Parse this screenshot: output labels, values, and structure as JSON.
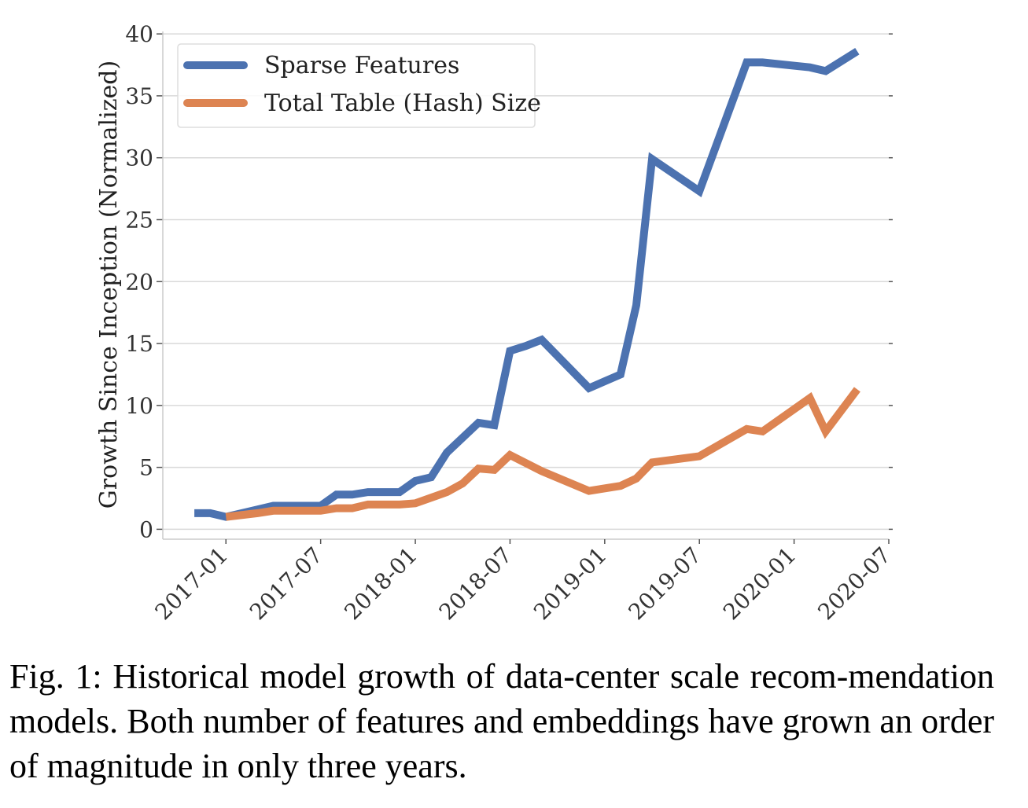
{
  "colors": {
    "sparse": "#4c72b0",
    "table": "#dd8452",
    "grid": "#d9d9d9",
    "axis": "#cccccc",
    "text": "#333333"
  },
  "chart_data": {
    "type": "line",
    "title": "",
    "xlabel": "",
    "ylabel": "Growth Since Inception (Normalized)",
    "x_ticks": [
      "2017-01",
      "2017-07",
      "2018-01",
      "2018-07",
      "2019-01",
      "2019-07",
      "2020-01",
      "2020-07"
    ],
    "y_ticks": [
      0,
      5,
      10,
      15,
      20,
      25,
      30,
      35,
      40
    ],
    "ylim": [
      -0.8,
      40.2
    ],
    "xlim": [
      "2016-09",
      "2020-07"
    ],
    "grid": true,
    "legend_position": "top-left",
    "series": [
      {
        "name": "Sparse Features",
        "color": "#4c72b0",
        "points": [
          [
            "2016-11",
            1.3
          ],
          [
            "2016-12",
            1.3
          ],
          [
            "2017-01",
            1.0
          ],
          [
            "2017-03",
            1.6
          ],
          [
            "2017-04",
            1.9
          ],
          [
            "2017-06",
            1.9
          ],
          [
            "2017-07",
            1.9
          ],
          [
            "2017-08",
            2.8
          ],
          [
            "2017-09",
            2.8
          ],
          [
            "2017-10",
            3.0
          ],
          [
            "2017-12",
            3.0
          ],
          [
            "2018-01",
            3.9
          ],
          [
            "2018-02",
            4.2
          ],
          [
            "2018-03",
            6.2
          ],
          [
            "2018-05",
            8.6
          ],
          [
            "2018-06",
            8.4
          ],
          [
            "2018-07",
            14.4
          ],
          [
            "2018-08",
            14.8
          ],
          [
            "2018-09",
            15.3
          ],
          [
            "2018-12",
            11.4
          ],
          [
            "2019-02",
            12.5
          ],
          [
            "2019-03",
            18.1
          ],
          [
            "2019-04",
            29.9
          ],
          [
            "2019-07",
            27.3
          ],
          [
            "2019-10",
            37.7
          ],
          [
            "2019-11",
            37.7
          ],
          [
            "2020-02",
            37.3
          ],
          [
            "2020-03",
            37.0
          ],
          [
            "2020-05",
            38.6
          ]
        ]
      },
      {
        "name": "Total Table (Hash) Size",
        "color": "#dd8452",
        "points": [
          [
            "2017-01",
            1.0
          ],
          [
            "2017-03",
            1.3
          ],
          [
            "2017-04",
            1.5
          ],
          [
            "2017-07",
            1.5
          ],
          [
            "2017-08",
            1.7
          ],
          [
            "2017-09",
            1.7
          ],
          [
            "2017-10",
            2.0
          ],
          [
            "2017-12",
            2.0
          ],
          [
            "2018-01",
            2.1
          ],
          [
            "2018-03",
            3.0
          ],
          [
            "2018-04",
            3.7
          ],
          [
            "2018-05",
            4.9
          ],
          [
            "2018-06",
            4.8
          ],
          [
            "2018-07",
            6.0
          ],
          [
            "2018-09",
            4.7
          ],
          [
            "2018-12",
            3.1
          ],
          [
            "2019-02",
            3.5
          ],
          [
            "2019-03",
            4.1
          ],
          [
            "2019-04",
            5.4
          ],
          [
            "2019-07",
            5.9
          ],
          [
            "2019-10",
            8.1
          ],
          [
            "2019-11",
            7.9
          ],
          [
            "2020-02",
            10.6
          ],
          [
            "2020-03",
            7.9
          ],
          [
            "2020-05",
            11.3
          ]
        ]
      }
    ]
  },
  "caption": {
    "text": "Fig. 1: Historical model growth of data-center scale recom-mendation models. Both number of features and embeddings have grown an order of magnitude in only three years."
  }
}
